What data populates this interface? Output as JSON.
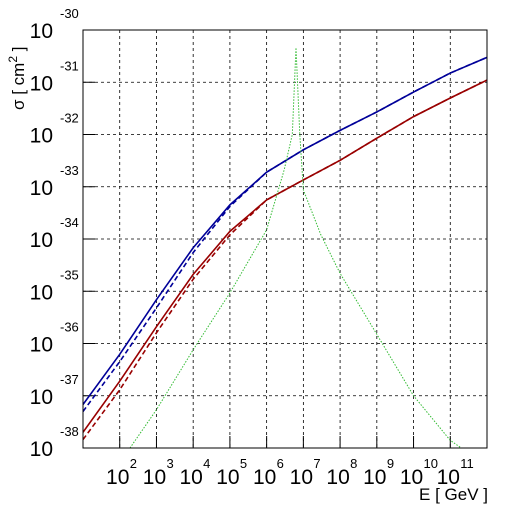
{
  "chart_data": {
    "type": "line",
    "log_x": true,
    "log_y": true,
    "grid": true,
    "x_label": "E [ GeV ]",
    "y_label": {
      "text": "σ [ cm",
      "superscript": "2",
      "tail": " ]"
    },
    "xlim": [
      10,
      1000000000000.0
    ],
    "ylim": [
      1e-38,
      1e-30
    ],
    "xticks": [
      {
        "value": 100,
        "label": "10",
        "exponent": "2"
      },
      {
        "value": 1000,
        "label": "10",
        "exponent": "3"
      },
      {
        "value": 10000,
        "label": "10",
        "exponent": "4"
      },
      {
        "value": 100000,
        "label": "10",
        "exponent": "5"
      },
      {
        "value": 1000000,
        "label": "10",
        "exponent": "6"
      },
      {
        "value": 10000000,
        "label": "10",
        "exponent": "7"
      },
      {
        "value": 100000000,
        "label": "10",
        "exponent": "8"
      },
      {
        "value": 1000000000,
        "label": "10",
        "exponent": "9"
      },
      {
        "value": 10000000000,
        "label": "10",
        "exponent": "10"
      },
      {
        "value": 100000000000,
        "label": "10",
        "exponent": "11"
      }
    ],
    "yticks": [
      {
        "value": 1e-38,
        "label": "10",
        "exponent": "-38"
      },
      {
        "value": 1e-37,
        "label": "10",
        "exponent": "-37"
      },
      {
        "value": 1e-36,
        "label": "10",
        "exponent": "-36"
      },
      {
        "value": 1e-35,
        "label": "10",
        "exponent": "-35"
      },
      {
        "value": 1e-34,
        "label": "10",
        "exponent": "-34"
      },
      {
        "value": 1e-33,
        "label": "10",
        "exponent": "-33"
      },
      {
        "value": 1e-32,
        "label": "10",
        "exponent": "-32"
      },
      {
        "value": 1e-31,
        "label": "10",
        "exponent": "-31"
      },
      {
        "value": 1e-30,
        "label": "10",
        "exponent": "-30"
      }
    ],
    "x": [
      10,
      100,
      1000,
      10000,
      100000,
      1000000,
      10000000,
      100000000,
      1000000000,
      10000000000,
      100000000000,
      1000000000000
    ],
    "series": [
      {
        "color": "#000099",
        "dash": false,
        "values": [
          6.8e-38,
          6.2e-37,
          6.9e-36,
          6.8e-35,
          4.5e-34,
          1.9e-33,
          5.1e-33,
          1.2e-32,
          2.7e-32,
          6.5e-32,
          1.5e-31,
          3e-31
        ]
      },
      {
        "color": "#000099",
        "dash": true,
        "values": [
          5e-38,
          4.5e-37,
          4.8e-36,
          5.5e-35,
          4.2e-34,
          1.9e-33,
          5.1e-33,
          1.2e-32,
          2.7e-32,
          6.5e-32,
          1.5e-31,
          3e-31
        ]
      },
      {
        "color": "#990000",
        "dash": false,
        "values": [
          2e-38,
          1.9e-37,
          2.1e-36,
          2.1e-35,
          1.4e-34,
          5.6e-34,
          1.35e-33,
          3.2e-33,
          8.5e-33,
          2.2e-32,
          5e-32,
          1.1e-31
        ]
      },
      {
        "color": "#990000",
        "dash": true,
        "values": [
          1.45e-38,
          1.3e-37,
          1.6e-36,
          1.7e-35,
          1.2e-34,
          5.6e-34,
          1.35e-33,
          3.2e-33,
          8.5e-33,
          2.2e-32,
          5e-32,
          1.1e-31
        ]
      },
      {
        "color": "#33bb33",
        "dotted": true,
        "x": [
          190,
          1000,
          10000,
          100000,
          1000000,
          3000000,
          5000000,
          6300000,
          8000000,
          10000000,
          30000000,
          100000000,
          1000000000,
          10000000000,
          100000000000,
          200000000000
        ],
        "values": [
          1e-38,
          5.4e-38,
          7.6e-37,
          9.3e-36,
          1.5e-34,
          2.1e-33,
          1e-32,
          4.6e-31,
          1e-32,
          8.7e-34,
          1.2e-34,
          2.2e-35,
          1.5e-36,
          1e-37,
          1.4e-38,
          1e-38
        ]
      }
    ]
  }
}
